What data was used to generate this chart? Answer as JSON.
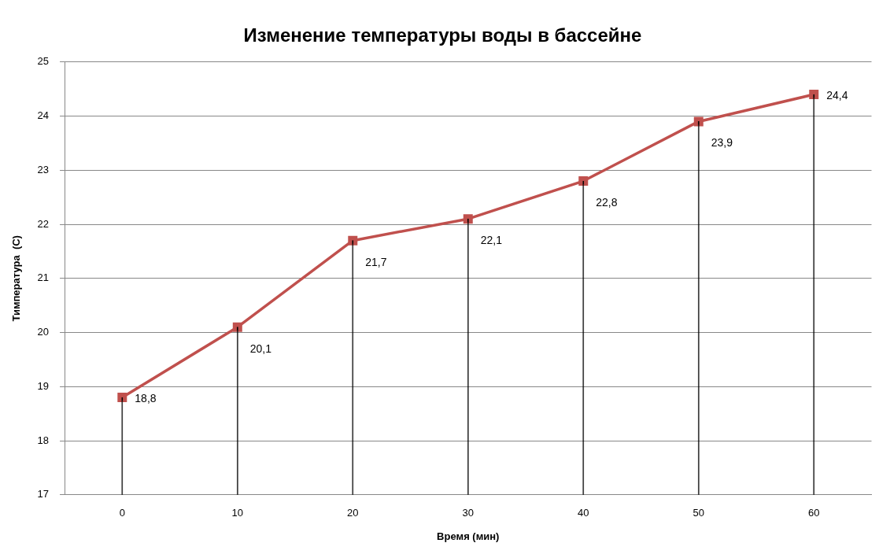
{
  "chart_data": {
    "type": "line",
    "title": "Изменение температуры воды в бассейне",
    "xlabel": "Время (мин)",
    "ylabel": "Тимпература  (С)",
    "categories": [
      "0",
      "10",
      "20",
      "30",
      "40",
      "50",
      "60"
    ],
    "series": [
      {
        "color": "#c0504d",
        "values": [
          18.8,
          20.1,
          21.7,
          22.1,
          22.8,
          23.9,
          24.4
        ]
      },
      {
        "type": "bar",
        "color": "#000000",
        "values": [
          18.8,
          20.1,
          21.7,
          22.1,
          22.8,
          23.9,
          24.4
        ]
      }
    ],
    "value_labels": [
      "18,8",
      "20,1",
      "21,7",
      "22,1",
      "22,8",
      "23,9",
      "24,4"
    ],
    "ylim": [
      17,
      25
    ],
    "yticks": [
      17,
      18,
      19,
      20,
      21,
      22,
      23,
      24,
      25
    ],
    "grid": "y",
    "legend": false,
    "marker": "square",
    "line_style": "solid"
  }
}
